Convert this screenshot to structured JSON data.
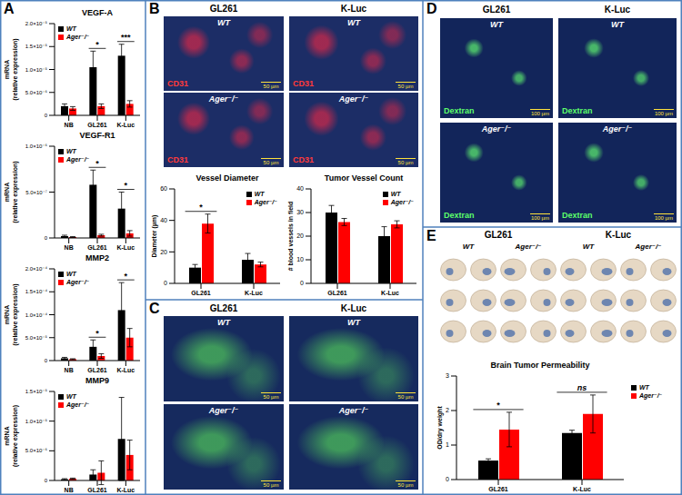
{
  "panel_labels": [
    "A",
    "B",
    "C",
    "D",
    "E"
  ],
  "chart_data": [
    {
      "panel": "A",
      "type": "bar",
      "title": "VEGF-A",
      "y_label": [
        "mRNA",
        "(relative expression)"
      ],
      "categories": [
        "NB",
        "GL261",
        "K-Luc"
      ],
      "series": [
        {
          "name": "WT",
          "color": "#000000",
          "values": [
            2e-06,
            1.05e-05,
            1.3e-05
          ],
          "errors": [
            5e-07,
            3.5e-06,
            2.5e-06
          ]
        },
        {
          "name": "Ager⁻/⁻",
          "color": "#ff0000",
          "values": [
            1.5e-06,
            2e-06,
            2.5e-06
          ],
          "errors": [
            4e-07,
            5e-07,
            7e-07
          ]
        }
      ],
      "ylim": [
        0,
        2e-05
      ],
      "yticks": [
        0,
        {
          "value": 5e-06,
          "label": "5.0×10⁻⁶"
        },
        {
          "value": 1e-05,
          "label": "1.0×10⁻⁵"
        },
        {
          "value": 1.5e-05,
          "label": "1.5×10⁻⁵"
        },
        {
          "value": 2e-05,
          "label": "2.0×10⁻⁵"
        }
      ],
      "legend": "upper left",
      "annotations": [
        {
          "category": "GL261",
          "text": "*"
        },
        {
          "category": "K-Luc",
          "text": "***"
        }
      ]
    },
    {
      "panel": "A",
      "type": "bar",
      "title": "VEGF-R1",
      "y_label": [
        "mRNA",
        "(relative expression)"
      ],
      "categories": [
        "NB",
        "GL261",
        "K-Luc"
      ],
      "series": [
        {
          "name": "WT",
          "color": "#000000",
          "values": [
            2e-08,
            5.8e-07,
            3.2e-07
          ],
          "errors": [
            1e-08,
            1.6e-07,
            1.8e-07
          ]
        },
        {
          "name": "Ager⁻/⁻",
          "color": "#ff0000",
          "values": [
            1e-08,
            3e-08,
            5e-08
          ],
          "errors": [
            5e-09,
            1e-08,
            3e-08
          ]
        }
      ],
      "ylim": [
        0,
        1e-06
      ],
      "yticks": [
        0,
        {
          "value": 5e-07,
          "label": "5.0×10⁻⁷"
        },
        {
          "value": 1e-06,
          "label": "1.0×10⁻⁶"
        }
      ],
      "legend": "upper left",
      "annotations": [
        {
          "category": "GL261",
          "text": "*"
        },
        {
          "category": "K-Luc",
          "text": "*"
        }
      ]
    },
    {
      "panel": "A",
      "type": "bar",
      "title": "MMP2",
      "y_label": [
        "mRNA",
        "(relative expression)"
      ],
      "categories": [
        "NB",
        "GL261",
        "K-Luc"
      ],
      "series": [
        {
          "name": "WT",
          "color": "#000000",
          "values": [
            5e-06,
            3e-05,
            0.00011
          ],
          "errors": [
            2e-06,
            1.5e-05,
            6e-05
          ]
        },
        {
          "name": "Ager⁻/⁻",
          "color": "#ff0000",
          "values": [
            3e-06,
            1e-05,
            5e-05
          ],
          "errors": [
            1e-06,
            5e-06,
            2e-05
          ]
        }
      ],
      "ylim": [
        0,
        0.0002
      ],
      "yticks": [
        0,
        {
          "value": 5e-05,
          "label": "5.0×10⁻⁵"
        },
        {
          "value": 0.0001,
          "label": "1.0×10⁻⁴"
        },
        {
          "value": 0.00015,
          "label": "1.5×10⁻⁴"
        },
        {
          "value": 0.0002,
          "label": "2.0×10⁻⁴"
        }
      ],
      "legend": "upper left",
      "annotations": [
        {
          "category": "GL261",
          "text": "*"
        },
        {
          "category": "K-Luc",
          "text": "*"
        }
      ]
    },
    {
      "panel": "A",
      "type": "bar",
      "title": "MMP9",
      "y_label": [
        "mRNA",
        "(relative expression)"
      ],
      "categories": [
        "NB",
        "GL261",
        "K-Luc"
      ],
      "series": [
        {
          "name": "WT",
          "color": "#000000",
          "values": [
            2e-07,
            1e-06,
            7e-06
          ],
          "errors": [
            1e-07,
            8e-07,
            7e-06
          ]
        },
        {
          "name": "Ager⁻/⁻",
          "color": "#ff0000",
          "values": [
            3e-07,
            1.3e-06,
            4.3e-06
          ],
          "errors": [
            1e-07,
            2e-06,
            2.5e-06
          ]
        }
      ],
      "ylim": [
        0,
        1.5e-05
      ],
      "yticks": [
        0,
        {
          "value": 5e-06,
          "label": "5.0×10⁻⁶"
        },
        {
          "value": 1e-05,
          "label": "1.0×10⁻⁵"
        },
        {
          "value": 1.5e-05,
          "label": "1.5×10⁻⁵"
        }
      ],
      "legend": "upper left"
    },
    {
      "panel": "B",
      "type": "bar",
      "title": "Vessel Diameter",
      "y_label": "Diameter (µm)",
      "categories": [
        "GL261",
        "K-Luc"
      ],
      "series": [
        {
          "name": "WT",
          "color": "#000000",
          "values": [
            10,
            15
          ],
          "errors": [
            2,
            4
          ]
        },
        {
          "name": "Ager⁻/⁻",
          "color": "#ff0000",
          "values": [
            38,
            12
          ],
          "errors": [
            6,
            1.5
          ]
        }
      ],
      "ylim": [
        0,
        60
      ],
      "yticks": [
        0,
        20,
        40,
        60
      ],
      "legend": "upper right",
      "annotations": [
        {
          "category": "GL261",
          "text": "*"
        }
      ]
    },
    {
      "panel": "B",
      "type": "bar",
      "title": "Tumor Vessel Count",
      "y_label": "# blood vessels in field",
      "categories": [
        "GL261",
        "K-Luc"
      ],
      "series": [
        {
          "name": "WT",
          "color": "#000000",
          "values": [
            30,
            20
          ],
          "errors": [
            3,
            4
          ]
        },
        {
          "name": "Ager⁻/⁻",
          "color": "#ff0000",
          "values": [
            26,
            25
          ],
          "errors": [
            1.5,
            1.5
          ]
        }
      ],
      "ylim": [
        0,
        40
      ],
      "yticks": [
        0,
        10,
        20,
        30,
        40
      ],
      "legend": "upper right"
    },
    {
      "panel": "E",
      "type": "bar",
      "title": "Brain Tumor Permeability",
      "y_label": "OD/dry weight",
      "categories": [
        "GL261",
        "K-Luc"
      ],
      "series": [
        {
          "name": "WT",
          "color": "#000000",
          "values": [
            0.55,
            1.35
          ],
          "errors": [
            0.05,
            0.08
          ]
        },
        {
          "name": "Ager⁻/⁻",
          "color": "#ff0000",
          "values": [
            1.45,
            1.9
          ],
          "errors": [
            0.5,
            0.55
          ]
        }
      ],
      "ylim": [
        0,
        3
      ],
      "yticks": [
        0,
        1,
        2,
        3
      ],
      "legend": "right",
      "annotations": [
        {
          "category": "GL261",
          "text": "*"
        },
        {
          "category": "K-Luc",
          "text": "ns"
        }
      ]
    }
  ],
  "image_panels": [
    {
      "panel": "B",
      "columns": [
        "GL261",
        "K-Luc"
      ],
      "rows": [
        "WT",
        "Ager⁻/⁻"
      ],
      "stain": "CD31",
      "scale_bar": "50 µm"
    },
    {
      "panel": "C",
      "columns": [
        "GL261",
        "K-Luc"
      ],
      "rows": [
        "WT",
        "Ager⁻/⁻"
      ],
      "scale_bar": "50 µm"
    },
    {
      "panel": "D",
      "columns": [
        "GL261",
        "K-Luc"
      ],
      "rows": [
        "WT",
        "Ager⁻/⁻"
      ],
      "stain": "Dextran",
      "scale_bar": "100 µm"
    },
    {
      "panel": "E",
      "columns": [
        "GL261",
        "K-Luc"
      ],
      "groups": [
        "WT",
        "Ager⁻/⁻"
      ]
    }
  ]
}
